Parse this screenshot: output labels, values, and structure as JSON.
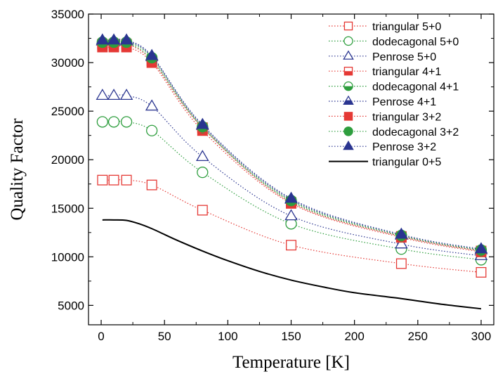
{
  "chart_data": {
    "type": "line",
    "title": "",
    "xlabel": "Temperature [K]",
    "ylabel": "Quality Factor",
    "xlim": [
      -10,
      310
    ],
    "ylim": [
      3000,
      35000
    ],
    "x_ticks": [
      0,
      50,
      100,
      150,
      200,
      250,
      300
    ],
    "y_ticks": [
      5000,
      10000,
      15000,
      20000,
      25000,
      30000,
      35000
    ],
    "grid": false,
    "legend_position": "top-right",
    "x": [
      1,
      10,
      20,
      40,
      80,
      150,
      237,
      300
    ],
    "series": [
      {
        "name": "triangular 5+0",
        "color": "#e53935",
        "marker": "square-open",
        "line": "dotted",
        "values": [
          17900,
          17900,
          17900,
          17400,
          14800,
          11200,
          9300,
          8400
        ]
      },
      {
        "name": "dodecagonal 5+0",
        "color": "#2e9e3e",
        "marker": "circle-open",
        "line": "dotted",
        "values": [
          23900,
          23900,
          23900,
          23000,
          18700,
          13400,
          10800,
          9700
        ]
      },
      {
        "name": "Penrose 5+0",
        "color": "#2a3590",
        "marker": "triangle-open",
        "line": "dotted",
        "values": [
          26600,
          26600,
          26600,
          25500,
          20300,
          14200,
          11300,
          10100
        ]
      },
      {
        "name": "triangular 4+1",
        "color": "#e53935",
        "marker": "square-half",
        "line": "dotted",
        "values": [
          31600,
          31600,
          31600,
          30000,
          23000,
          15500,
          12000,
          10500
        ]
      },
      {
        "name": "dodecagonal 4+1",
        "color": "#2e9e3e",
        "marker": "circle-half",
        "line": "dotted",
        "values": [
          32000,
          32000,
          32000,
          30300,
          23300,
          15700,
          12100,
          10600
        ]
      },
      {
        "name": "Penrose 4+1",
        "color": "#2a3590",
        "marker": "triangle-half",
        "line": "dotted",
        "values": [
          32200,
          32200,
          32200,
          30600,
          23500,
          15900,
          12200,
          10700
        ]
      },
      {
        "name": "triangular 3+2",
        "color": "#e53935",
        "marker": "square-filled",
        "line": "dotted",
        "values": [
          31900,
          31900,
          31900,
          30200,
          23300,
          15600,
          12100,
          10600
        ]
      },
      {
        "name": "dodecagonal 3+2",
        "color": "#2e9e3e",
        "marker": "circle-filled",
        "line": "dotted",
        "values": [
          32100,
          32100,
          32100,
          30500,
          23400,
          15800,
          12200,
          10700
        ]
      },
      {
        "name": "Penrose 3+2",
        "color": "#2a3590",
        "marker": "triangle-filled",
        "line": "dotted",
        "values": [
          32300,
          32300,
          32300,
          30700,
          23600,
          16000,
          12300,
          10800
        ]
      },
      {
        "name": "triangular 0+5",
        "color": "#000000",
        "marker": "none",
        "line": "solid",
        "x": [
          1,
          10,
          20,
          30,
          40,
          50,
          60,
          80,
          100,
          125,
          150,
          175,
          200,
          237,
          270,
          300
        ],
        "values": [
          13800,
          13800,
          13750,
          13400,
          12900,
          12300,
          11700,
          10600,
          9600,
          8500,
          7600,
          6900,
          6300,
          5700,
          5100,
          4650
        ]
      }
    ]
  }
}
